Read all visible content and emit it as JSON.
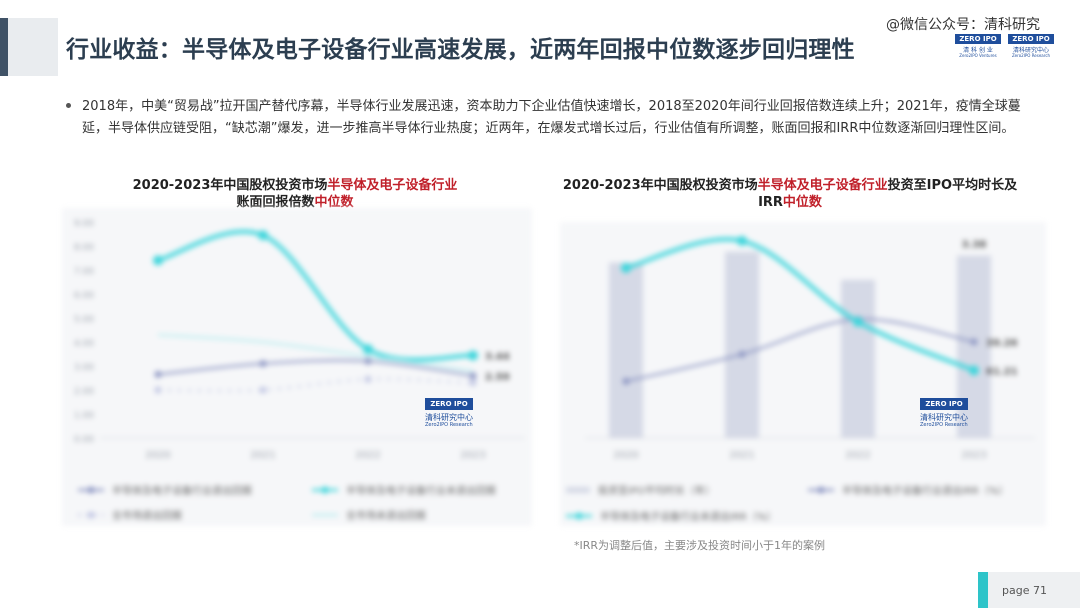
{
  "header": {
    "title": "行业收益：半导体及电子设备行业高速发展，近两年回报中位数逐步回归理性",
    "wechat": "@微信公众号：清科研究",
    "logo_left": {
      "box": "ZERO IPO",
      "cn": "清 科 创 业",
      "en": "Zero2IPO Ventures"
    },
    "logo_right": {
      "box": "ZERO IPO",
      "cn": "清科研究中心",
      "en": "Zero2IPO Research"
    }
  },
  "bullet": "2018年，中美“贸易战”拉开国产替代序幕，半导体行业发展迅速，资本助力下企业估值快速增长，2018至2020年间行业回报倍数连续上升；2021年，疫情全球蔓延，半导体供应链受阻，“缺芯潮”爆发，进一步推高半导体行业热度；近两年，在爆发式增长过后，行业估值有所调整，账面回报和IRR中位数逐渐回归理性区间。",
  "watermark": {
    "box": "ZERO IPO",
    "cn": "清科研究中心",
    "en": "Zero2IPO Research"
  },
  "footnote": "*IRR为调整后值，主要涉及投资时间小于1年的案例",
  "page": "page  71",
  "chart_data": [
    {
      "type": "line",
      "title_parts": [
        "2020-2023年中国股权投资市场",
        "半导体及电子设备行业",
        "账面回报倍数",
        "中位数"
      ],
      "x": [
        "2020",
        "2021",
        "2022",
        "2023"
      ],
      "ylim": [
        0,
        9
      ],
      "yticks": [
        "0.00",
        "1.00",
        "2.00",
        "3.00",
        "4.00",
        "5.00",
        "6.00",
        "7.00",
        "8.00",
        "9.00"
      ],
      "series": [
        {
          "name": "半导体及电子设备行业退出回报",
          "color": "#8f98c4",
          "dash": "solid",
          "marker": "circle",
          "values": [
            2.65,
            3.1,
            3.2,
            2.59
          ],
          "last_label": "2.59"
        },
        {
          "name": "半导体及电子设备行业未退出回报",
          "color": "#3fd6dc",
          "dash": "solid",
          "marker": "circle",
          "values": [
            7.4,
            8.45,
            3.7,
            3.44
          ],
          "last_label": "3.44"
        },
        {
          "name": "全市场退出回报",
          "color": "#c3c8e4",
          "dash": "dotted",
          "marker": "circle",
          "values": [
            2.0,
            2.0,
            2.45,
            2.3
          ]
        },
        {
          "name": "全市场未退出回报",
          "color": "#bdeef0",
          "dash": "solid",
          "marker": "none",
          "values": [
            4.3,
            4.0,
            3.4,
            2.8
          ]
        }
      ],
      "legend_position": "bottom"
    },
    {
      "type": "bar-line",
      "title_parts": [
        "2020-2023年中国股权投资市场",
        "半导体及电子设备行业",
        "投资至IPO平均时长及IRR",
        "中位数"
      ],
      "x": [
        "2020",
        "2021",
        "2022",
        "2023"
      ],
      "ylim": [
        0,
        4
      ],
      "bars": {
        "name": "投资至IPO平均时长（年）",
        "color": "#d5d9e6",
        "values": [
          3.25,
          3.45,
          2.93,
          3.38
        ],
        "last_label": "3.38"
      },
      "series": [
        {
          "name": "半导体及电子设备行业退出IRR（%）",
          "color": "#8f98c4",
          "marker": "circle",
          "values": [
            1.05,
            1.55,
            2.2,
            1.78
          ],
          "last_label": "39.26"
        },
        {
          "name": "半导体及电子设备行业未退出IRR（%）",
          "color": "#3fd6dc",
          "marker": "circle",
          "values": [
            3.15,
            3.65,
            2.15,
            1.25
          ],
          "last_label": "61.21"
        }
      ],
      "legend_position": "bottom"
    }
  ]
}
